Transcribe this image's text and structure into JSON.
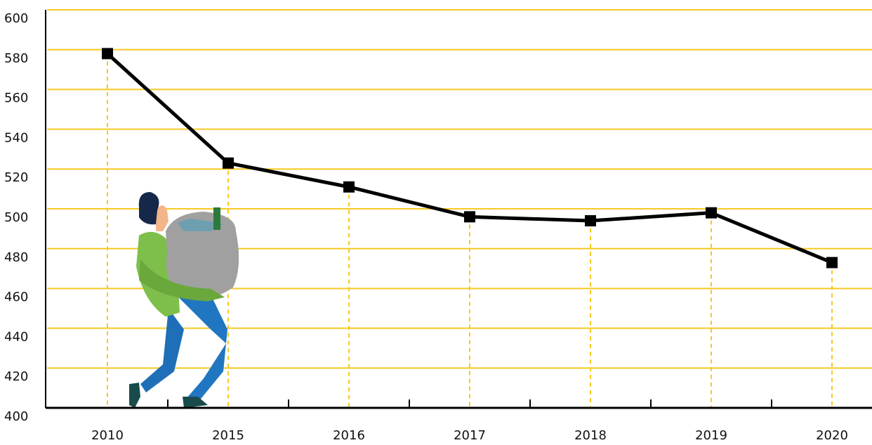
{
  "chart_data": {
    "type": "line",
    "categories": [
      "2010",
      "2015",
      "2016",
      "2017",
      "2018",
      "2019",
      "2020"
    ],
    "series": [
      {
        "color": "#000000",
        "values": [
          578,
          523,
          511,
          496,
          494,
          498,
          473
        ]
      }
    ],
    "ylim": [
      400,
      600
    ],
    "yticks": [
      400,
      420,
      440,
      460,
      480,
      500,
      520,
      540,
      560,
      580,
      600
    ],
    "grid": true,
    "grid_color": "#f5c924"
  }
}
